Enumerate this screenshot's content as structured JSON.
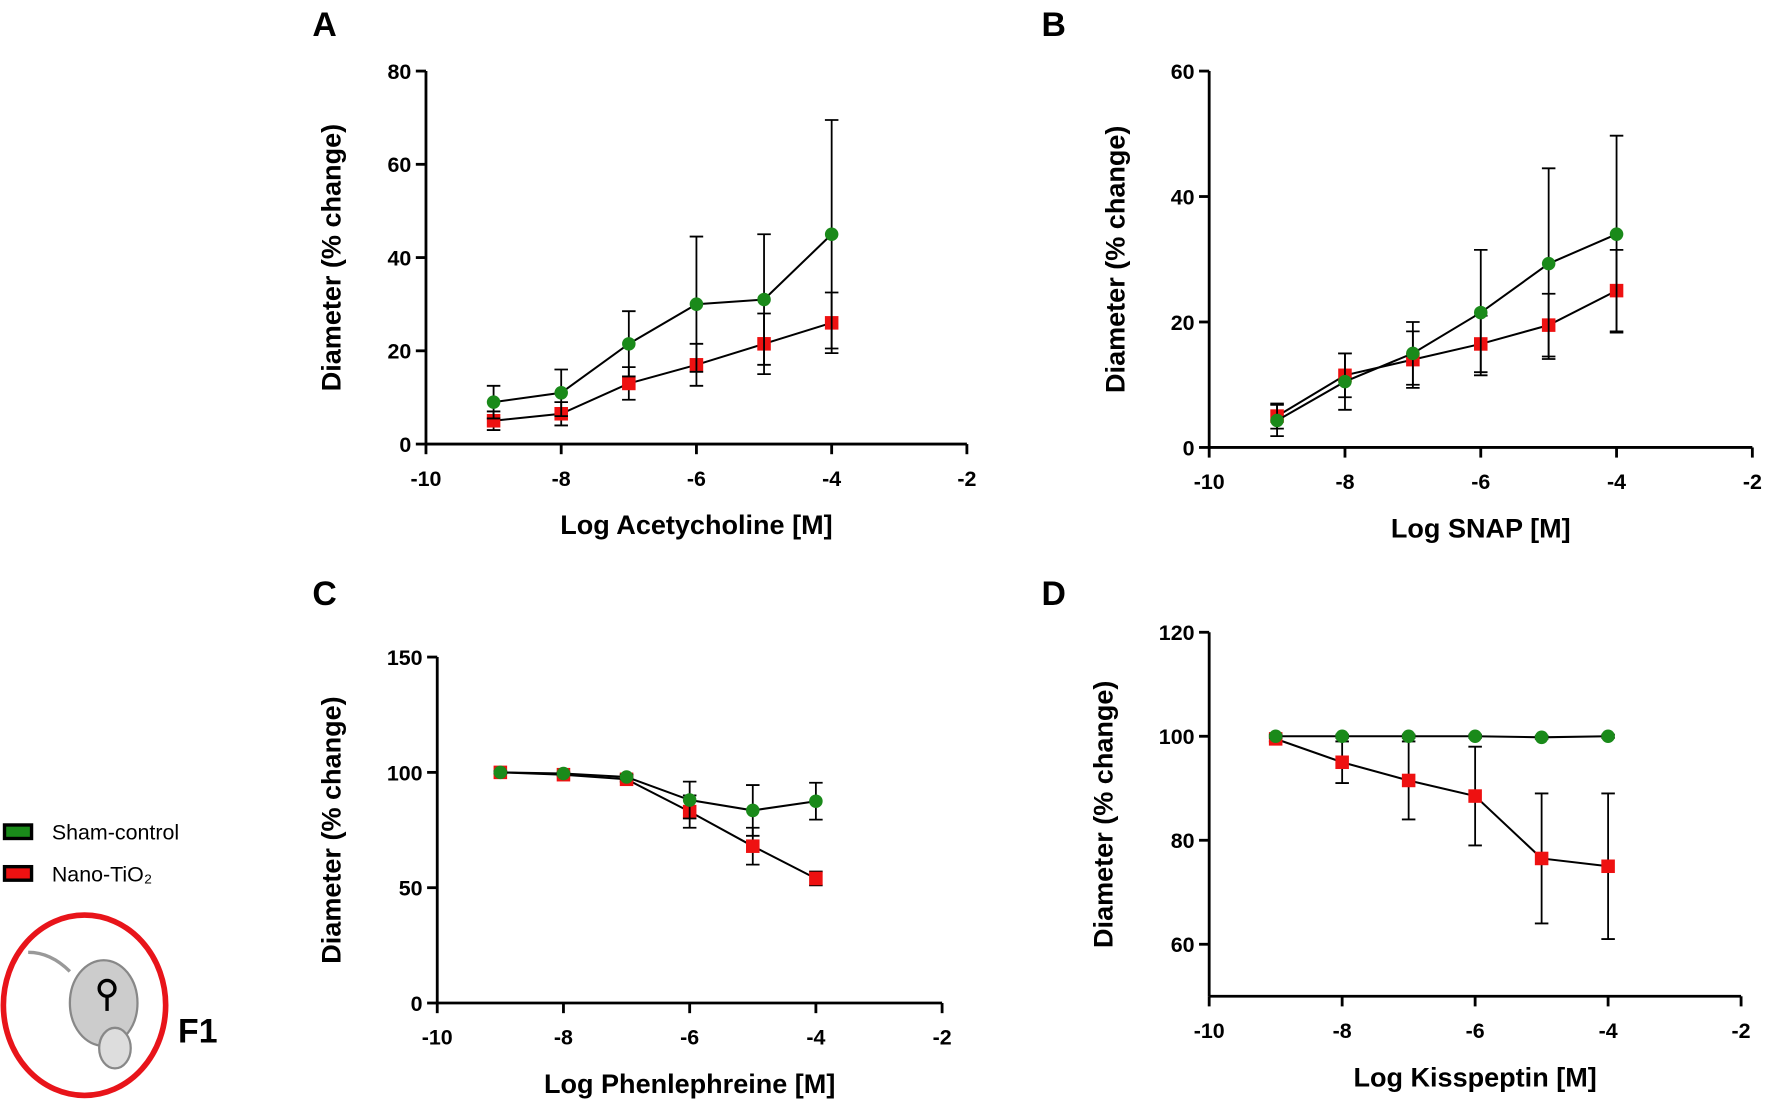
{
  "legend": [
    {
      "name": "Sham-control",
      "color": "#1a8a1a"
    },
    {
      "name": "Nano-TiO₂",
      "color": "#ee1111"
    }
  ],
  "figure_label": "F1",
  "chart_data": [
    {
      "type": "line",
      "panel": "A",
      "xlabel": "Log Acetycholine [M]",
      "ylabel": "Diameter (% change)",
      "x": [
        -9,
        -8,
        -7,
        -6,
        -5,
        -4
      ],
      "xlim": [
        -10,
        -2
      ],
      "xticks": [
        -10,
        -8,
        -6,
        -4,
        -2
      ],
      "ylim": [
        0,
        80
      ],
      "yticks": [
        0,
        20,
        40,
        60,
        80
      ],
      "series": [
        {
          "values": [
            9,
            11,
            21.5,
            30,
            31,
            45
          ],
          "errors": [
            3.5,
            5,
            7,
            14.5,
            14,
            24.5
          ]
        },
        {
          "values": [
            5,
            6.5,
            13,
            17,
            21.5,
            26
          ],
          "errors": [
            2,
            2.5,
            3.5,
            4.5,
            6.5,
            6.5
          ]
        }
      ]
    },
    {
      "type": "line",
      "panel": "B",
      "xlabel": "Log SNAP [M]",
      "ylabel": "Diameter (% change)",
      "x": [
        -9,
        -8,
        -7,
        -6,
        -5,
        -4
      ],
      "xlim": [
        -10,
        -2
      ],
      "xticks": [
        -10,
        -8,
        -6,
        -4,
        -2
      ],
      "ylim": [
        0,
        60
      ],
      "yticks": [
        0,
        20,
        40,
        60
      ],
      "series": [
        {
          "values": [
            4.3,
            10.5,
            15,
            21.5,
            29.3,
            34
          ],
          "errors": [
            2.5,
            4.5,
            5,
            10,
            15.2,
            15.7
          ]
        },
        {
          "values": [
            5,
            11.5,
            14,
            16.5,
            19.5,
            25
          ],
          "errors": [
            2,
            3.5,
            4.5,
            4.5,
            5,
            6.5
          ]
        }
      ]
    },
    {
      "type": "line",
      "panel": "C",
      "xlabel": "Log Phenlephreine [M]",
      "ylabel": "Diameter (% change)",
      "x": [
        -9,
        -8,
        -7,
        -6,
        -5,
        -4
      ],
      "xlim": [
        -10,
        -2
      ],
      "xticks": [
        -10,
        -8,
        -6,
        -4,
        -2
      ],
      "ylim": [
        0,
        150
      ],
      "yticks": [
        0,
        50,
        100,
        150
      ],
      "series": [
        {
          "values": [
            100,
            99.5,
            98,
            88,
            83.5,
            87.5
          ],
          "errors": [
            0.5,
            0.5,
            1,
            8,
            11,
            8
          ]
        },
        {
          "values": [
            100,
            99,
            97,
            83,
            68,
            54
          ],
          "errors": [
            0.5,
            0.5,
            1,
            7,
            8,
            3
          ]
        }
      ]
    },
    {
      "type": "line",
      "panel": "D",
      "xlabel": "Log Kisspeptin [M]",
      "ylabel": "Diameter (% change)",
      "x": [
        -9,
        -8,
        -7,
        -6,
        -5,
        -4
      ],
      "xlim": [
        -10,
        -2
      ],
      "xticks": [
        -10,
        -8,
        -6,
        -4,
        -2
      ],
      "ylim": [
        50,
        120
      ],
      "yticks": [
        60,
        80,
        100,
        120
      ],
      "series": [
        {
          "values": [
            100,
            100,
            100,
            100,
            99.8,
            100
          ],
          "errors": [
            0.3,
            0.3,
            0.3,
            0.3,
            0.3,
            0.3
          ]
        },
        {
          "values": [
            99.5,
            95,
            91.5,
            88.5,
            76.5,
            75
          ],
          "errors": [
            0.5,
            4,
            7.5,
            9.5,
            12.5,
            14
          ]
        }
      ]
    }
  ]
}
